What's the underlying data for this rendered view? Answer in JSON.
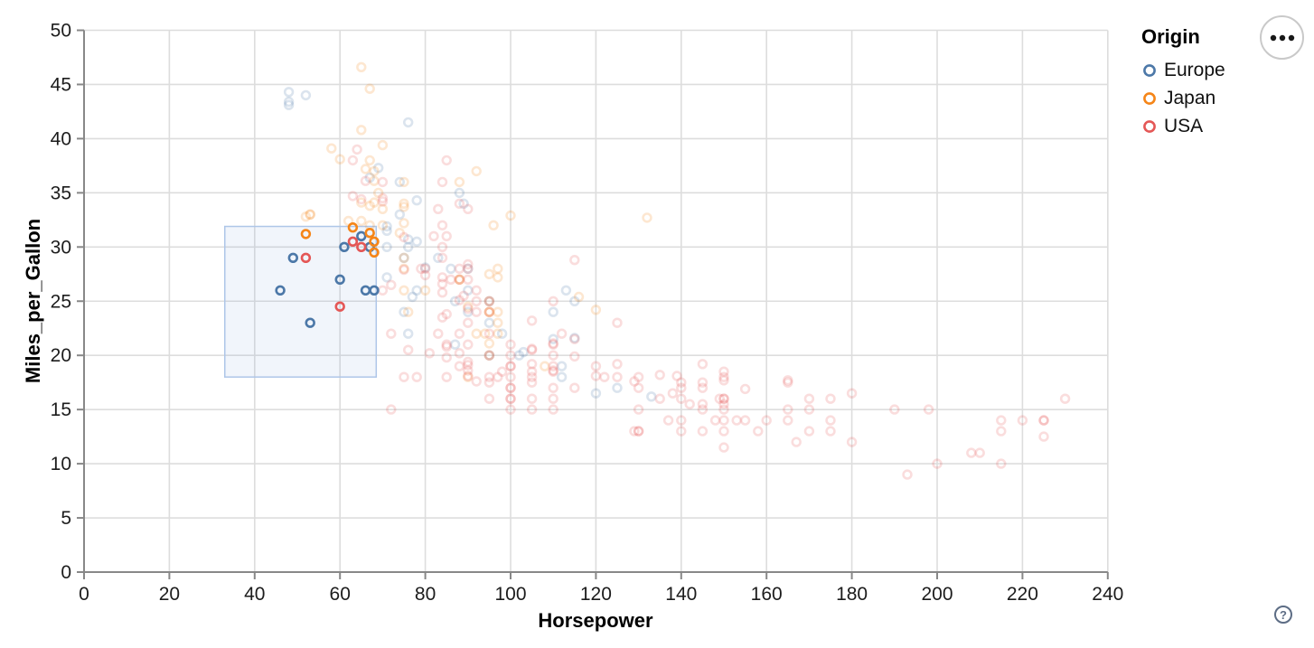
{
  "legend": {
    "title": "Origin",
    "items": [
      {
        "label": "Europe",
        "color": "#4c78a8"
      },
      {
        "label": "Japan",
        "color": "#f58518"
      },
      {
        "label": "USA",
        "color": "#e45756"
      }
    ]
  },
  "ui": {
    "menu_button": {
      "icon": "ellipsis-icon"
    },
    "help_button": {
      "icon": "question-mark-icon",
      "glyph": "?"
    }
  },
  "chart_data": {
    "type": "scatter",
    "title": "",
    "xlabel": "Horsepower",
    "ylabel": "Miles_per_Gallon",
    "xlim": [
      0,
      240
    ],
    "ylim": [
      0,
      50
    ],
    "x_ticks": [
      0,
      20,
      40,
      60,
      80,
      100,
      120,
      140,
      160,
      180,
      200,
      220,
      240
    ],
    "y_ticks": [
      0,
      5,
      10,
      15,
      20,
      25,
      30,
      35,
      40,
      45,
      50
    ],
    "grid": true,
    "legend_position": "top-right",
    "mark": {
      "shape": "open-circle",
      "radius": 4.4,
      "stroke_width": 2.6,
      "faded_opacity": 0.2,
      "selected_opacity": 1
    },
    "grid_color": "#dddddd",
    "axis_color": "#888888",
    "brush": {
      "hp": [
        33,
        68.5
      ],
      "mpg": [
        18,
        31.9
      ],
      "fill": "rgba(120,160,215,0.10)",
      "stroke": "#aec6e8"
    },
    "series": [
      {
        "name": "Europe",
        "color": "#4c78a8",
        "points": [
          [
            46,
            26
          ],
          [
            49,
            29
          ],
          [
            53,
            23
          ],
          [
            60,
            27
          ],
          [
            61,
            30
          ],
          [
            65,
            31
          ],
          [
            67,
            30
          ],
          [
            66,
            26
          ],
          [
            68,
            26
          ],
          [
            87,
            25
          ],
          [
            90,
            24
          ],
          [
            95,
            25
          ],
          [
            113,
            26
          ],
          [
            90,
            28
          ],
          [
            71,
            30
          ],
          [
            76,
            30
          ],
          [
            76,
            22
          ],
          [
            87,
            21
          ],
          [
            112,
            18
          ],
          [
            112,
            19
          ],
          [
            110,
            24
          ],
          [
            90,
            26
          ],
          [
            75,
            29
          ],
          [
            78,
            26
          ],
          [
            83,
            29
          ],
          [
            95,
            20
          ],
          [
            98,
            22
          ],
          [
            115,
            25
          ],
          [
            95,
            23
          ],
          [
            86,
            28
          ],
          [
            120,
            16.5
          ],
          [
            102,
            20
          ],
          [
            78,
            30.5
          ],
          [
            110,
            21.5
          ],
          [
            125,
            17
          ],
          [
            48,
            43.1
          ],
          [
            103,
            20.3
          ],
          [
            115,
            21.6
          ],
          [
            133,
            16.2
          ],
          [
            71,
            31.5
          ],
          [
            71,
            31.9
          ],
          [
            71,
            27.2
          ],
          [
            48,
            43.4
          ],
          [
            69,
            37.3
          ],
          [
            80,
            28.1
          ],
          [
            77,
            25.4
          ],
          [
            76,
            30.7
          ],
          [
            76,
            41.5
          ],
          [
            48,
            44.3
          ],
          [
            78,
            34.3
          ],
          [
            88,
            35
          ],
          [
            74,
            33
          ],
          [
            74,
            36
          ],
          [
            52,
            44
          ],
          [
            75,
            24
          ],
          [
            67,
            36.4
          ],
          [
            89,
            34
          ]
        ]
      },
      {
        "name": "Japan",
        "color": "#f58518",
        "points": [
          [
            52,
            31.2
          ],
          [
            63,
            31.8
          ],
          [
            67,
            31.3
          ],
          [
            68,
            30.5
          ],
          [
            68,
            29.5
          ],
          [
            95,
            24
          ],
          [
            88,
            27
          ],
          [
            88,
            27
          ],
          [
            95,
            25
          ],
          [
            69,
            35
          ],
          [
            95,
            24
          ],
          [
            97,
            28
          ],
          [
            97,
            23
          ],
          [
            95,
            20
          ],
          [
            94,
            22
          ],
          [
            90,
            18
          ],
          [
            76,
            24
          ],
          [
            80,
            26
          ],
          [
            75,
            29
          ],
          [
            75,
            28
          ],
          [
            53,
            33
          ],
          [
            53,
            33
          ],
          [
            97,
            22
          ],
          [
            97,
            24
          ],
          [
            70,
            32
          ],
          [
            108,
            19
          ],
          [
            70,
            33.5
          ],
          [
            95,
            21.1
          ],
          [
            75,
            26
          ],
          [
            70,
            39.4
          ],
          [
            52,
            32.8
          ],
          [
            97,
            27.2
          ],
          [
            95,
            27.5
          ],
          [
            68,
            36.1
          ],
          [
            65,
            34.1
          ],
          [
            66,
            37.2
          ],
          [
            65,
            40.8
          ],
          [
            67,
            44.6
          ],
          [
            65,
            46.6
          ],
          [
            92,
            37
          ],
          [
            75,
            32.2
          ],
          [
            74,
            31.3
          ],
          [
            67,
            33.8
          ],
          [
            60,
            38.1
          ],
          [
            65,
            32.4
          ],
          [
            58,
            39.1
          ],
          [
            75,
            33.7
          ],
          [
            62,
            32.4
          ],
          [
            68,
            34.1
          ],
          [
            116,
            25.4
          ],
          [
            120,
            24.2
          ],
          [
            100,
            32.9
          ],
          [
            88,
            36
          ],
          [
            75,
            36
          ],
          [
            75,
            34
          ],
          [
            67,
            38
          ],
          [
            67,
            32
          ],
          [
            96,
            32
          ],
          [
            68,
            37
          ],
          [
            132,
            32.7
          ],
          [
            92,
            22
          ],
          [
            90,
            24.5
          ]
        ]
      },
      {
        "name": "USA",
        "color": "#e45756",
        "points": [
          [
            52,
            29
          ],
          [
            60,
            24.5
          ],
          [
            63,
            30.5
          ],
          [
            65,
            30
          ],
          [
            130,
            18
          ],
          [
            165,
            15
          ],
          [
            150,
            18
          ],
          [
            150,
            16
          ],
          [
            140,
            17
          ],
          [
            198,
            15
          ],
          [
            220,
            14
          ],
          [
            215,
            14
          ],
          [
            225,
            14
          ],
          [
            190,
            15
          ],
          [
            170,
            15
          ],
          [
            160,
            14
          ],
          [
            150,
            15
          ],
          [
            225,
            12.5
          ],
          [
            215,
            13
          ],
          [
            215,
            10
          ],
          [
            200,
            10
          ],
          [
            210,
            11
          ],
          [
            193,
            9
          ],
          [
            230,
            16
          ],
          [
            208,
            11
          ],
          [
            175,
            14
          ],
          [
            175,
            13
          ],
          [
            170,
            13
          ],
          [
            180,
            12
          ],
          [
            167,
            12
          ],
          [
            165,
            14
          ],
          [
            153,
            14
          ],
          [
            150,
            14
          ],
          [
            150,
            13
          ],
          [
            145,
            13
          ],
          [
            137,
            14
          ],
          [
            158,
            13
          ],
          [
            140,
            14
          ],
          [
            148,
            14
          ],
          [
            145,
            15
          ],
          [
            150,
            16
          ],
          [
            170,
            16
          ],
          [
            129,
            13
          ],
          [
            129,
            17.6
          ],
          [
            138,
            16.5
          ],
          [
            135,
            18.2
          ],
          [
            155,
            16.9
          ],
          [
            142,
            15.5
          ],
          [
            150,
            18.5
          ],
          [
            165,
            17.7
          ],
          [
            139,
            18.1
          ],
          [
            140,
            17.5
          ],
          [
            150,
            17.7
          ],
          [
            145,
            19.2
          ],
          [
            95,
            24
          ],
          [
            95,
            22
          ],
          [
            97,
            18
          ],
          [
            85,
            21
          ],
          [
            90,
            21
          ],
          [
            105,
            16
          ],
          [
            100,
            17
          ],
          [
            88,
            19
          ],
          [
            100,
            18
          ],
          [
            100,
            16
          ],
          [
            105,
            18
          ],
          [
            95,
            20
          ],
          [
            85,
            18
          ],
          [
            110,
            16
          ],
          [
            105,
            18.5
          ],
          [
            110,
            17
          ],
          [
            110,
            15
          ],
          [
            95,
            18
          ],
          [
            110,
            21
          ],
          [
            110,
            20
          ],
          [
            83,
            22
          ],
          [
            100,
            20
          ],
          [
            105,
            20.5
          ],
          [
            100,
            19
          ],
          [
            98,
            18.5
          ],
          [
            105,
            17.5
          ],
          [
            110,
            18.5
          ],
          [
            95,
            17.5
          ],
          [
            105,
            19.2
          ],
          [
            105,
            20.6
          ],
          [
            85,
            20.8
          ],
          [
            90,
            18.6
          ],
          [
            120,
            18.1
          ],
          [
            105,
            23.2
          ],
          [
            110,
            21.1
          ],
          [
            115,
            19.9
          ],
          [
            115,
            21.5
          ],
          [
            125,
            19.2
          ],
          [
            90,
            19.4
          ],
          [
            88,
            25.1
          ],
          [
            81,
            20.2
          ],
          [
            85,
            23.8
          ],
          [
            80,
            27.4
          ],
          [
            85,
            19.8
          ],
          [
            88,
            20.2
          ],
          [
            90,
            18.1
          ],
          [
            110,
            18.6
          ],
          [
            130,
            17
          ],
          [
            90,
            24.3
          ],
          [
            90,
            19.1
          ],
          [
            88,
            22
          ],
          [
            75,
            27.9
          ],
          [
            84,
            27.2
          ],
          [
            84,
            25.8
          ],
          [
            84,
            23.5
          ],
          [
            84,
            30
          ],
          [
            84,
            26.6
          ],
          [
            84,
            29
          ],
          [
            90,
            27
          ],
          [
            92,
            24
          ],
          [
            88,
            28
          ],
          [
            88,
            27
          ],
          [
            88,
            34
          ],
          [
            85,
            31
          ],
          [
            92,
            17.6
          ],
          [
            112,
            22
          ],
          [
            86,
            27
          ],
          [
            110,
            25
          ],
          [
            90,
            23
          ],
          [
            84,
            32
          ],
          [
            79,
            28
          ],
          [
            82,
            31
          ],
          [
            89,
            25.5
          ],
          [
            95,
            25
          ],
          [
            92,
            25
          ],
          [
            92,
            26
          ],
          [
            78,
            18
          ],
          [
            75,
            18
          ],
          [
            76,
            20.5
          ],
          [
            100,
            21
          ],
          [
            115,
            28.8
          ],
          [
            90,
            28
          ],
          [
            75,
            30.9
          ],
          [
            70,
            34.2
          ],
          [
            70,
            34.5
          ],
          [
            63,
            38
          ],
          [
            63,
            34.7
          ],
          [
            64,
            39
          ],
          [
            90,
            33.5
          ],
          [
            90,
            28.4
          ],
          [
            70,
            36
          ],
          [
            84,
            36
          ],
          [
            85,
            38
          ],
          [
            66,
            36.1
          ],
          [
            65,
            34.4
          ],
          [
            83,
            33.5
          ],
          [
            72,
            22
          ],
          [
            72,
            26.5
          ],
          [
            72,
            15
          ],
          [
            70,
            26
          ],
          [
            80,
            28
          ],
          [
            100,
            15
          ],
          [
            100,
            16
          ],
          [
            100,
            17
          ],
          [
            100,
            19
          ],
          [
            125,
            23
          ],
          [
            180,
            16.5
          ],
          [
            150,
            15.5
          ],
          [
            149,
            16
          ],
          [
            145,
            15.5
          ],
          [
            145,
            17.5
          ],
          [
            145,
            17
          ],
          [
            95,
            16
          ],
          [
            105,
            15
          ],
          [
            110,
            19
          ],
          [
            120,
            19
          ],
          [
            115,
            17
          ],
          [
            125,
            18
          ],
          [
            130,
            15
          ],
          [
            135,
            16
          ],
          [
            140,
            16
          ],
          [
            165,
            17.5
          ],
          [
            155,
            14
          ],
          [
            140,
            13
          ],
          [
            130,
            13
          ],
          [
            130,
            13
          ],
          [
            122,
            18
          ],
          [
            150,
            11.5
          ],
          [
            225,
            14
          ],
          [
            175,
            16
          ]
        ]
      }
    ]
  }
}
